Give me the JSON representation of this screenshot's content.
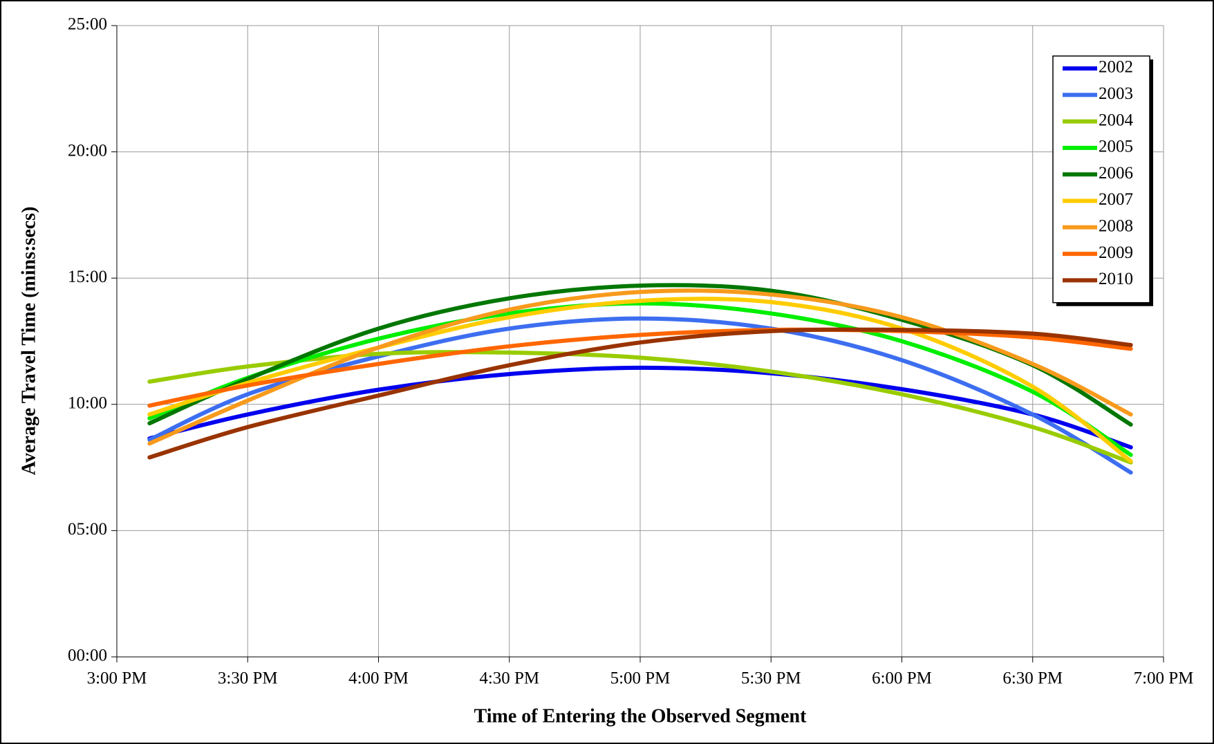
{
  "chart_data": {
    "type": "line",
    "y_label": "Average Travel Time (mins:secs)",
    "x_label": "Time of Entering the Observed Segment",
    "x": [
      15.125,
      15.5,
      16,
      16.5,
      17,
      17.5,
      18,
      18.5,
      18.875
    ],
    "xlim": [
      15,
      19
    ],
    "xticks": [
      {
        "value": 15,
        "label": "3:00 PM"
      },
      {
        "value": 15.5,
        "label": "3:30 PM"
      },
      {
        "value": 16,
        "label": "4:00 PM"
      },
      {
        "value": 16.5,
        "label": "4:30 PM"
      },
      {
        "value": 17,
        "label": "5:00 PM"
      },
      {
        "value": 17.5,
        "label": "5:30 PM"
      },
      {
        "value": 18,
        "label": "6:00 PM"
      },
      {
        "value": 18.5,
        "label": "6:30 PM"
      },
      {
        "value": 19,
        "label": "7:00 PM"
      }
    ],
    "ylim": [
      0,
      25
    ],
    "yticks": [
      {
        "value": 0,
        "label": "00:00"
      },
      {
        "value": 5,
        "label": "05:00"
      },
      {
        "value": 10,
        "label": "10:00"
      },
      {
        "value": 15,
        "label": "15:00"
      },
      {
        "value": 20,
        "label": "20:00"
      },
      {
        "value": 25,
        "label": "25:00"
      }
    ],
    "grid": true,
    "legend": "top-right",
    "series": [
      {
        "name": "2002",
        "color": "#0000ee",
        "values": [
          8.65,
          9.6,
          10.58,
          11.2,
          11.45,
          11.23,
          10.6,
          9.6,
          8.3
        ]
      },
      {
        "name": "2003",
        "color": "#3d6ef0",
        "values": [
          8.6,
          10.4,
          11.9,
          13.0,
          13.4,
          13.0,
          11.75,
          9.6,
          7.3
        ]
      },
      {
        "name": "2004",
        "color": "#99cc00",
        "values": [
          10.9,
          11.5,
          12.0,
          12.05,
          11.85,
          11.3,
          10.4,
          9.1,
          7.7
        ]
      },
      {
        "name": "2005",
        "color": "#00ee00",
        "values": [
          9.45,
          11.05,
          12.6,
          13.6,
          14.0,
          13.6,
          12.5,
          10.5,
          8.0
        ]
      },
      {
        "name": "2006",
        "color": "#007700",
        "values": [
          9.25,
          11.0,
          13.0,
          14.2,
          14.7,
          14.5,
          13.35,
          11.55,
          9.2
        ]
      },
      {
        "name": "2007",
        "color": "#ffcc00",
        "values": [
          9.6,
          10.85,
          12.25,
          13.45,
          14.1,
          14.05,
          13.0,
          10.7,
          7.75
        ]
      },
      {
        "name": "2008",
        "color": "#f89a1c",
        "values": [
          8.45,
          10.15,
          12.25,
          13.75,
          14.45,
          14.35,
          13.45,
          11.6,
          9.6
        ]
      },
      {
        "name": "2009",
        "color": "#ff6600",
        "values": [
          9.95,
          10.75,
          11.6,
          12.3,
          12.75,
          12.95,
          12.9,
          12.65,
          12.2
        ]
      },
      {
        "name": "2010",
        "color": "#993300",
        "values": [
          7.9,
          9.1,
          10.35,
          11.55,
          12.45,
          12.9,
          12.95,
          12.8,
          12.35
        ]
      }
    ]
  }
}
